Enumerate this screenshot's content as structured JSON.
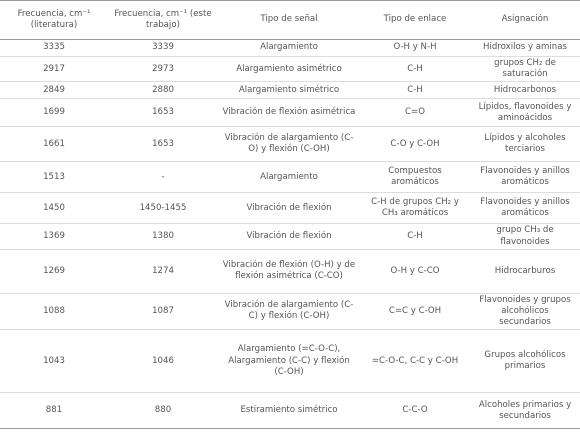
{
  "table": {
    "headers": [
      "Frecuencia, cm⁻¹ (literatura)",
      "Frecuencia, cm⁻¹ (este trabajo)",
      "Tipo de señal",
      "Tipo de enlace",
      "Asignación"
    ],
    "rows": [
      [
        "3335",
        "3339",
        "Alargamiento",
        "O-H y N-H",
        "Hidroxilos y aminas"
      ],
      [
        "2917",
        "2973",
        "Alargamiento asimétrico",
        "C-H",
        "grupos CH₂ de saturación"
      ],
      [
        "2849",
        "2880",
        "Alargamiento simétrico",
        "C-H",
        "Hidrocarbonos"
      ],
      [
        "1699",
        "1653",
        "Vibración de flexión asimétrica",
        "C=O",
        "Lípidos, flavonoides y aminoácidos"
      ],
      [
        "1661",
        "1653",
        "Vibración de alargamiento (C-O) y flexión (C-OH)",
        "C-O y C-OH",
        "Lípidos y alcoholes terciarios"
      ],
      [
        "1513",
        "-",
        "Alargamiento",
        "Compuestos aromáticos",
        "Flavonoides y anillos aromáticos"
      ],
      [
        "1450",
        "1450-1455",
        "Vibración de flexión",
        "C-H de grupos CH₂ y CH₃ aromáticos",
        "Flavonoides y anillos aromáticos"
      ],
      [
        "1369",
        "1380",
        "Vibración de flexión",
        "C-H",
        "grupo CH₃ de flavonoides"
      ],
      [
        "1269",
        "1274",
        "Vibración de flexión (O-H) y de flexión asimétrica (C-CO)",
        "O-H y C-CO",
        "Hidrocarburos"
      ],
      [
        "1088",
        "1087",
        "Vibración de alargamiento (C-C) y flexión (C-OH)",
        "C=C y C-OH",
        "Flavonoides y grupos alcohólicos secundarios"
      ],
      [
        "1043",
        "1046",
        "Alargamiento (=C-O-C), Alargamiento (C-C) y flexión (C-OH)",
        "=C-O-C, C-C y C-OH",
        "Grupos alcohólicos primarios"
      ],
      [
        "881",
        "880",
        "Estiramiento simétrico",
        "C-C-O",
        "Alcoholes primarios y secundarios"
      ]
    ]
  }
}
